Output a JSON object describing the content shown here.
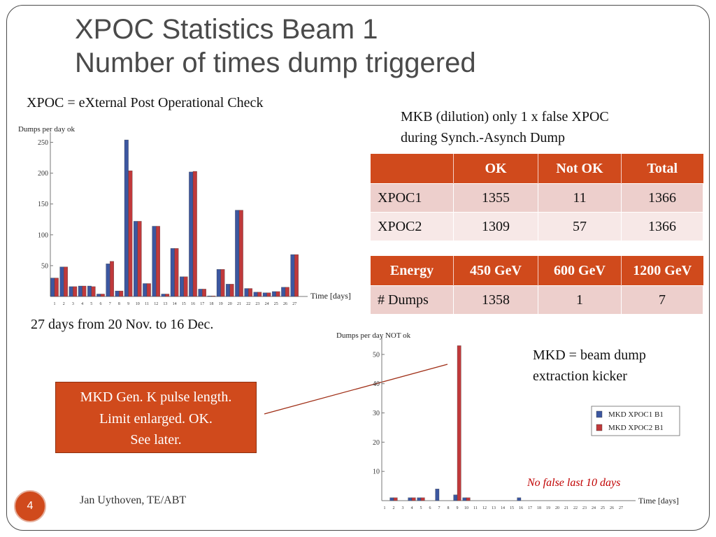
{
  "title": {
    "line1": "XPOC Statistics Beam 1",
    "line2": "Number of times dump triggered"
  },
  "definition": "XPOC = eXternal Post Operational Check",
  "mkb_note": {
    "line1": "MKB (dilution) only 1 x  false XPOC",
    "line2": "during Synch.-Asynch Dump"
  },
  "days_note": "27 days from  20 Nov. to 16 Dec.",
  "mkd_note": {
    "line1": "MKD = beam dump",
    "line2": "extraction kicker"
  },
  "callout": {
    "line1": "MKD Gen. K pulse length.",
    "line2": "Limit enlarged. OK.",
    "line3": "See later."
  },
  "no_false_note": "No false last 10 days",
  "footer": {
    "page_number": "4",
    "author": "Jan Uythoven, TE/ABT"
  },
  "xpoc_table": {
    "headers": [
      "",
      "OK",
      "Not OK",
      "Total"
    ],
    "rows": [
      [
        "XPOC1",
        "1355",
        "11",
        "1366"
      ],
      [
        "XPOC2",
        "1309",
        "57",
        "1366"
      ]
    ]
  },
  "energy_table": {
    "headers": [
      "Energy",
      "450 GeV",
      "600 GeV",
      "1200 GeV"
    ],
    "rows": [
      [
        "# Dumps",
        "1358",
        "1",
        "7"
      ]
    ]
  },
  "colors": {
    "accent": "#d04a1c",
    "series1": "#3c57a0",
    "series2": "#c0393b",
    "leader_line": "#a03018"
  },
  "chart_data": [
    {
      "type": "bar",
      "ylabel": "Dumps per day ok",
      "xlabel": "Time [days]",
      "categories": [
        "1",
        "2",
        "3",
        "4",
        "5",
        "6",
        "7",
        "8",
        "9",
        "10",
        "11",
        "12",
        "13",
        "14",
        "15",
        "16",
        "17",
        "18",
        "19",
        "20",
        "21",
        "22",
        "23",
        "24",
        "25",
        "26",
        "27"
      ],
      "yticks": [
        "50",
        "100",
        "150",
        "200",
        "250"
      ],
      "ylim": [
        0,
        262
      ],
      "grid": false,
      "series": [
        {
          "values": [
            30,
            48,
            16,
            17,
            17,
            4,
            53,
            9,
            254,
            122,
            21,
            114,
            4,
            78,
            32,
            202,
            12,
            1,
            44,
            20,
            140,
            13,
            7,
            6,
            8,
            15,
            68
          ]
        },
        {
          "values": [
            30,
            48,
            16,
            17,
            16,
            4,
            57,
            9,
            204,
            122,
            21,
            114,
            4,
            78,
            32,
            203,
            12,
            1,
            44,
            20,
            140,
            13,
            7,
            6,
            8,
            15,
            68
          ]
        }
      ]
    },
    {
      "type": "bar",
      "ylabel": "Dumps per day NOT ok",
      "xlabel": "Time [days]",
      "categories": [
        "1",
        "2",
        "3",
        "4",
        "5",
        "6",
        "7",
        "8",
        "9",
        "10",
        "11",
        "12",
        "13",
        "14",
        "15",
        "16",
        "17",
        "18",
        "19",
        "20",
        "21",
        "22",
        "23",
        "24",
        "25",
        "26",
        "27"
      ],
      "yticks": [
        "10",
        "20",
        "30",
        "40",
        "50"
      ],
      "ylim": [
        0,
        55
      ],
      "grid": false,
      "legend_position": "right",
      "series": [
        {
          "name": "MKD XPOC1 B1",
          "values": [
            0,
            1,
            0,
            1,
            1,
            0,
            4,
            0,
            2,
            1,
            0,
            0,
            0,
            0,
            0,
            1,
            0,
            0,
            0,
            0,
            0,
            0,
            0,
            0,
            0,
            0,
            0
          ]
        },
        {
          "name": "MKD XPOC2 B1",
          "values": [
            0,
            1,
            0,
            1,
            1,
            0,
            0,
            0,
            53,
            1,
            0,
            0,
            0,
            0,
            0,
            0,
            0,
            0,
            0,
            0,
            0,
            0,
            0,
            0,
            0,
            0,
            0
          ]
        }
      ]
    }
  ]
}
